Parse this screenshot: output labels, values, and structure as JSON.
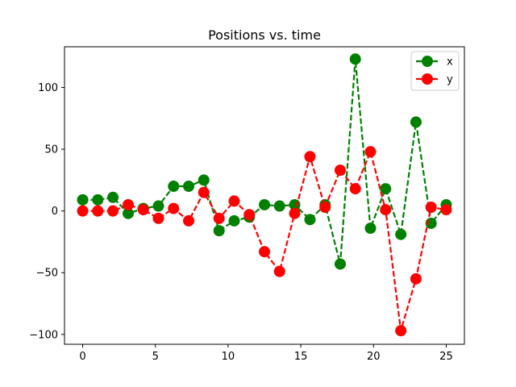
{
  "chart_data": {
    "type": "line",
    "title": "Positions vs. time",
    "xlabel": "",
    "ylabel": "",
    "xlim": [
      -1.25,
      26.25
    ],
    "ylim": [
      -108,
      133
    ],
    "xticks": [
      0,
      5,
      10,
      15,
      20,
      25
    ],
    "xtick_labels": [
      "0",
      "5",
      "10",
      "15",
      "20",
      "25"
    ],
    "yticks": [
      -100,
      -50,
      0,
      50,
      100
    ],
    "ytick_labels": [
      "−100",
      "−50",
      "0",
      "50",
      "100"
    ],
    "grid": false,
    "legend": {
      "position": "top-right"
    },
    "x": [
      0,
      1.04,
      2.08,
      3.13,
      4.17,
      5.21,
      6.25,
      7.29,
      8.33,
      9.38,
      10.42,
      11.46,
      12.5,
      13.54,
      14.58,
      15.63,
      16.67,
      17.71,
      18.75,
      19.79,
      20.83,
      21.88,
      22.92,
      23.96,
      25
    ],
    "series": [
      {
        "name": "x",
        "color": "#008000",
        "marker": "circle",
        "linestyle": "dashed",
        "values": [
          9,
          9,
          11,
          -2,
          2,
          4,
          20,
          20,
          25,
          -16,
          -8,
          -5,
          5,
          4,
          5,
          -7,
          5,
          -43,
          123,
          -14,
          18,
          -19,
          72,
          -10,
          5
        ]
      },
      {
        "name": "y",
        "color": "#ff0000",
        "marker": "circle",
        "linestyle": "dashed",
        "values": [
          0,
          0,
          0,
          5,
          1,
          -6,
          2,
          -8,
          15,
          -6,
          8,
          -3,
          -33,
          -49,
          -2,
          44,
          3,
          33,
          18,
          48,
          1,
          -97,
          -55,
          3,
          1
        ]
      }
    ]
  }
}
